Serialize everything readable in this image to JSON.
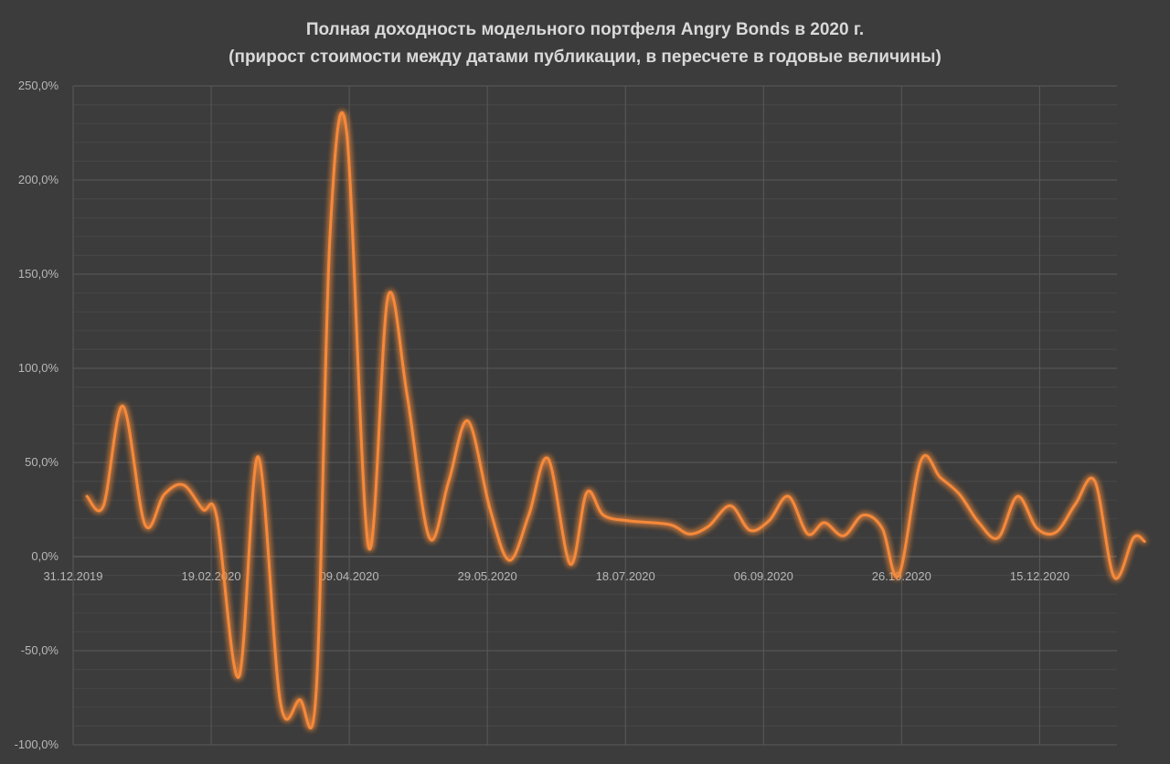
{
  "chart_data": {
    "type": "line",
    "title": "Полная доходность модельного портфеля Angry Bonds в 2020 г.",
    "subtitle": "(прирост стоимости между датами публикации,  в пересчете в годовые величины)",
    "xlabel": "",
    "ylabel": "",
    "x_range": [
      "31.12.2019",
      "12.01.2021"
    ],
    "x_tick_labels": [
      "31.12.2019",
      "19.02.2020",
      "09.04.2020",
      "29.05.2020",
      "18.07.2020",
      "06.09.2020",
      "26.10.2020",
      "15.12.2020"
    ],
    "y_tick_labels": [
      "250,0%",
      "200,0%",
      "150,0%",
      "100,0%",
      "50,0%",
      "0,0%",
      "-50,0%",
      "-100,0%"
    ],
    "ylim": [
      -100,
      250
    ],
    "y_unit": "%",
    "grid": true,
    "series": [
      {
        "color": "#f5893a",
        "points": [
          {
            "x": "05.01.2020",
            "y": 32
          },
          {
            "x": "11.01.2020",
            "y": 27
          },
          {
            "x": "18.01.2020",
            "y": 80
          },
          {
            "x": "26.01.2020",
            "y": 17
          },
          {
            "x": "02.02.2020",
            "y": 33
          },
          {
            "x": "09.02.2020",
            "y": 38
          },
          {
            "x": "16.02.2020",
            "y": 25
          },
          {
            "x": "21.02.2020",
            "y": 21
          },
          {
            "x": "29.02.2020",
            "y": -64
          },
          {
            "x": "07.03.2020",
            "y": 53
          },
          {
            "x": "15.03.2020",
            "y": -77
          },
          {
            "x": "22.03.2020",
            "y": -76
          },
          {
            "x": "28.03.2020",
            "y": -72
          },
          {
            "x": "02.04.2020",
            "y": 170
          },
          {
            "x": "08.04.2020",
            "y": 226
          },
          {
            "x": "16.04.2020",
            "y": 5
          },
          {
            "x": "23.04.2020",
            "y": 138
          },
          {
            "x": "30.04.2020",
            "y": 85
          },
          {
            "x": "08.05.2020",
            "y": 10
          },
          {
            "x": "15.05.2020",
            "y": 40
          },
          {
            "x": "22.05.2020",
            "y": 72
          },
          {
            "x": "30.05.2020",
            "y": 25
          },
          {
            "x": "06.06.2020",
            "y": -2
          },
          {
            "x": "13.06.2020",
            "y": 22
          },
          {
            "x": "20.06.2020",
            "y": 52
          },
          {
            "x": "28.06.2020",
            "y": -4
          },
          {
            "x": "04.07.2020",
            "y": 34
          },
          {
            "x": "10.07.2020",
            "y": 22
          },
          {
            "x": "19.07.2020",
            "y": 19
          },
          {
            "x": "03.08.2020",
            "y": 17
          },
          {
            "x": "10.08.2020",
            "y": 12
          },
          {
            "x": "17.08.2020",
            "y": 16
          },
          {
            "x": "25.08.2020",
            "y": 27
          },
          {
            "x": "01.09.2020",
            "y": 14
          },
          {
            "x": "08.09.2020",
            "y": 19
          },
          {
            "x": "15.09.2020",
            "y": 32
          },
          {
            "x": "22.09.2020",
            "y": 12
          },
          {
            "x": "28.09.2020",
            "y": 18
          },
          {
            "x": "05.10.2020",
            "y": 11
          },
          {
            "x": "12.10.2020",
            "y": 22
          },
          {
            "x": "19.10.2020",
            "y": 15
          },
          {
            "x": "25.10.2020",
            "y": -10
          },
          {
            "x": "02.11.2020",
            "y": 51
          },
          {
            "x": "09.11.2020",
            "y": 42
          },
          {
            "x": "16.11.2020",
            "y": 33
          },
          {
            "x": "23.11.2020",
            "y": 18
          },
          {
            "x": "30.11.2020",
            "y": 10
          },
          {
            "x": "07.12.2020",
            "y": 32
          },
          {
            "x": "14.12.2020",
            "y": 15
          },
          {
            "x": "21.12.2020",
            "y": 13
          },
          {
            "x": "28.12.2020",
            "y": 28
          },
          {
            "x": "04.01.2021",
            "y": 40
          },
          {
            "x": "11.01.2021",
            "y": -11
          },
          {
            "x": "18.01.2021",
            "y": 10
          },
          {
            "x": "22.01.2021",
            "y": 8
          }
        ]
      }
    ]
  }
}
